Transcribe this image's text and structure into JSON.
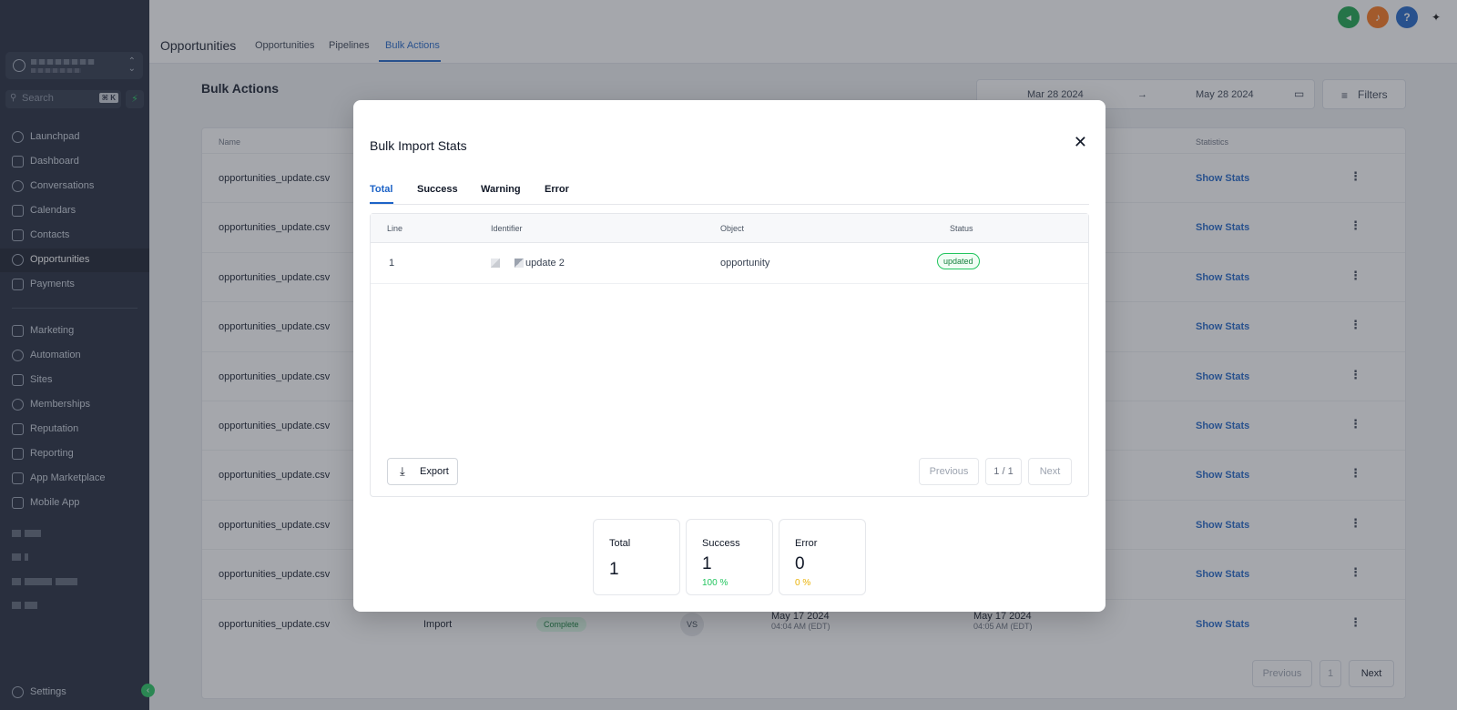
{
  "sidebar": {
    "search_placeholder": "Search",
    "search_shortcut": "⌘ K",
    "items": [
      {
        "label": "Launchpad"
      },
      {
        "label": "Dashboard"
      },
      {
        "label": "Conversations"
      },
      {
        "label": "Calendars"
      },
      {
        "label": "Contacts"
      },
      {
        "label": "Opportunities"
      },
      {
        "label": "Payments"
      },
      {
        "label": "Marketing"
      },
      {
        "label": "Automation"
      },
      {
        "label": "Sites"
      },
      {
        "label": "Memberships"
      },
      {
        "label": "Reputation"
      },
      {
        "label": "Reporting"
      },
      {
        "label": "App Marketplace"
      },
      {
        "label": "Mobile App"
      }
    ],
    "settings": "Settings"
  },
  "header": {
    "title": "Opportunities",
    "tabs": [
      "Opportunities",
      "Pipelines",
      "Bulk Actions"
    ]
  },
  "content": {
    "title": "Bulk Actions",
    "date_from": "Mar 28 2024",
    "date_arrow": "→",
    "date_to": "May 28 2024",
    "filters": "Filters",
    "columns": {
      "name": "Name",
      "statistics": "Statistics"
    },
    "rows": [
      {
        "name": "opportunities_update.csv",
        "stats": "Show Stats"
      },
      {
        "name": "opportunities_update.csv",
        "stats": "Show Stats"
      },
      {
        "name": "opportunities_update.csv",
        "stats": "Show Stats"
      },
      {
        "name": "opportunities_update.csv",
        "stats": "Show Stats"
      },
      {
        "name": "opportunities_update.csv",
        "stats": "Show Stats"
      },
      {
        "name": "opportunities_update.csv",
        "stats": "Show Stats"
      },
      {
        "name": "opportunities_update.csv",
        "stats": "Show Stats"
      },
      {
        "name": "opportunities_update.csv",
        "stats": "Show Stats"
      },
      {
        "name": "opportunities_update.csv",
        "stats": "Show Stats"
      },
      {
        "name": "opportunities_update.csv",
        "stats": "Show Stats",
        "type": "Import",
        "status": "Complete",
        "user": "VS",
        "created": "May 17 2024",
        "created_time": "04:04 AM",
        "created_tz": "(EDT)",
        "completed": "May 17 2024",
        "completed_time": "04:05 AM",
        "completed_tz": "(EDT)"
      }
    ],
    "pagination": {
      "previous": "Previous",
      "page": "1",
      "next": "Next"
    }
  },
  "modal": {
    "title": "Bulk Import Stats",
    "close": "✕",
    "tabs": [
      "Total",
      "Success",
      "Warning",
      "Error"
    ],
    "columns": [
      "Line",
      "Identifier",
      "Object",
      "Status"
    ],
    "rows": [
      {
        "line": "1",
        "identifier": "update 2",
        "object": "opportunity",
        "status": "updated"
      }
    ],
    "export": "Export",
    "pagination": {
      "previous": "Previous",
      "page": "1 / 1",
      "next": "Next"
    },
    "stats": {
      "total_label": "Total",
      "total_value": "1",
      "success_label": "Success",
      "success_value": "1",
      "success_pct": "100 %",
      "error_label": "Error",
      "error_value": "0",
      "error_pct": "0 %"
    }
  },
  "colors": {
    "accent": "#1d63c7",
    "success": "#22c55e",
    "warning": "#eab308",
    "sidebar": "#1e2638"
  }
}
